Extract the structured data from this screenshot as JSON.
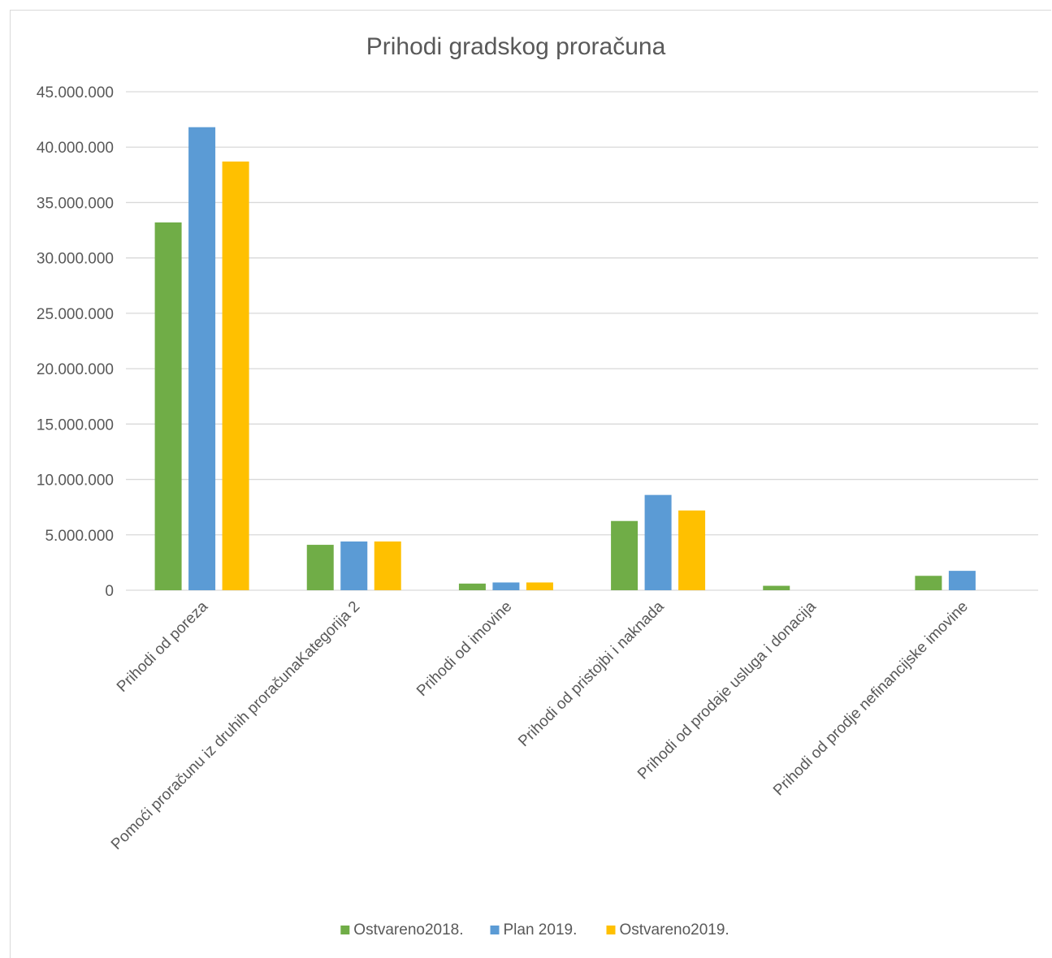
{
  "chart_data": {
    "type": "bar",
    "title": "Prihodi gradskog proračuna",
    "xlabel": "",
    "ylabel": "",
    "ylim": [
      0,
      45000000
    ],
    "yticks": [
      0,
      5000000,
      10000000,
      15000000,
      20000000,
      25000000,
      30000000,
      35000000,
      40000000,
      45000000
    ],
    "ytick_labels": [
      "0",
      "5.000.000",
      "10.000.000",
      "15.000.000",
      "20.000.000",
      "25.000.000",
      "30.000.000",
      "35.000.000",
      "40.000.000",
      "45.000.000"
    ],
    "grid": true,
    "legend_position": "bottom",
    "categories": [
      "Prihodi od poreza",
      "Pomoći proračunu iz druhih proračunaKategorija 2",
      "Prihodi od imovine",
      "Prihodi od pristojbi i naknada",
      "Prihodi od prodaje usluga i donacija",
      "Prihodi od prodje nefinancijske imovine"
    ],
    "series": [
      {
        "name": "Ostvareno2018.",
        "color": "#70ad47",
        "values": [
          33200000,
          4100000,
          600000,
          6250000,
          400000,
          1300000
        ]
      },
      {
        "name": "Plan 2019.",
        "color": "#5b9bd5",
        "values": [
          41800000,
          4400000,
          700000,
          8600000,
          0,
          1750000
        ]
      },
      {
        "name": "Ostvareno2019.",
        "color": "#ffc000",
        "values": [
          38700000,
          4400000,
          700000,
          7200000,
          0,
          0
        ]
      }
    ]
  }
}
